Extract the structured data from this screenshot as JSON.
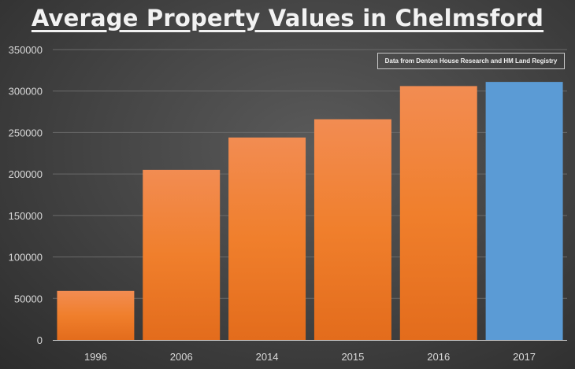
{
  "chart_data": {
    "type": "bar",
    "title": "Average Property Values in Chelmsford",
    "annotation": "Data from Denton House Research and HM Land Registry",
    "xlabel": "",
    "ylabel": "",
    "categories": [
      "1996",
      "2006",
      "2014",
      "2015",
      "2016",
      "2017"
    ],
    "values": [
      59000,
      205000,
      244000,
      266000,
      306000,
      311000
    ],
    "bar_colors": [
      "#f07f2c",
      "#f07f2c",
      "#f07f2c",
      "#f07f2c",
      "#f07f2c",
      "#5b9bd5"
    ],
    "ylim": [
      0,
      350000
    ],
    "yticks": [
      0,
      50000,
      100000,
      150000,
      200000,
      250000,
      300000,
      350000
    ],
    "grid": true,
    "legend": "none"
  }
}
